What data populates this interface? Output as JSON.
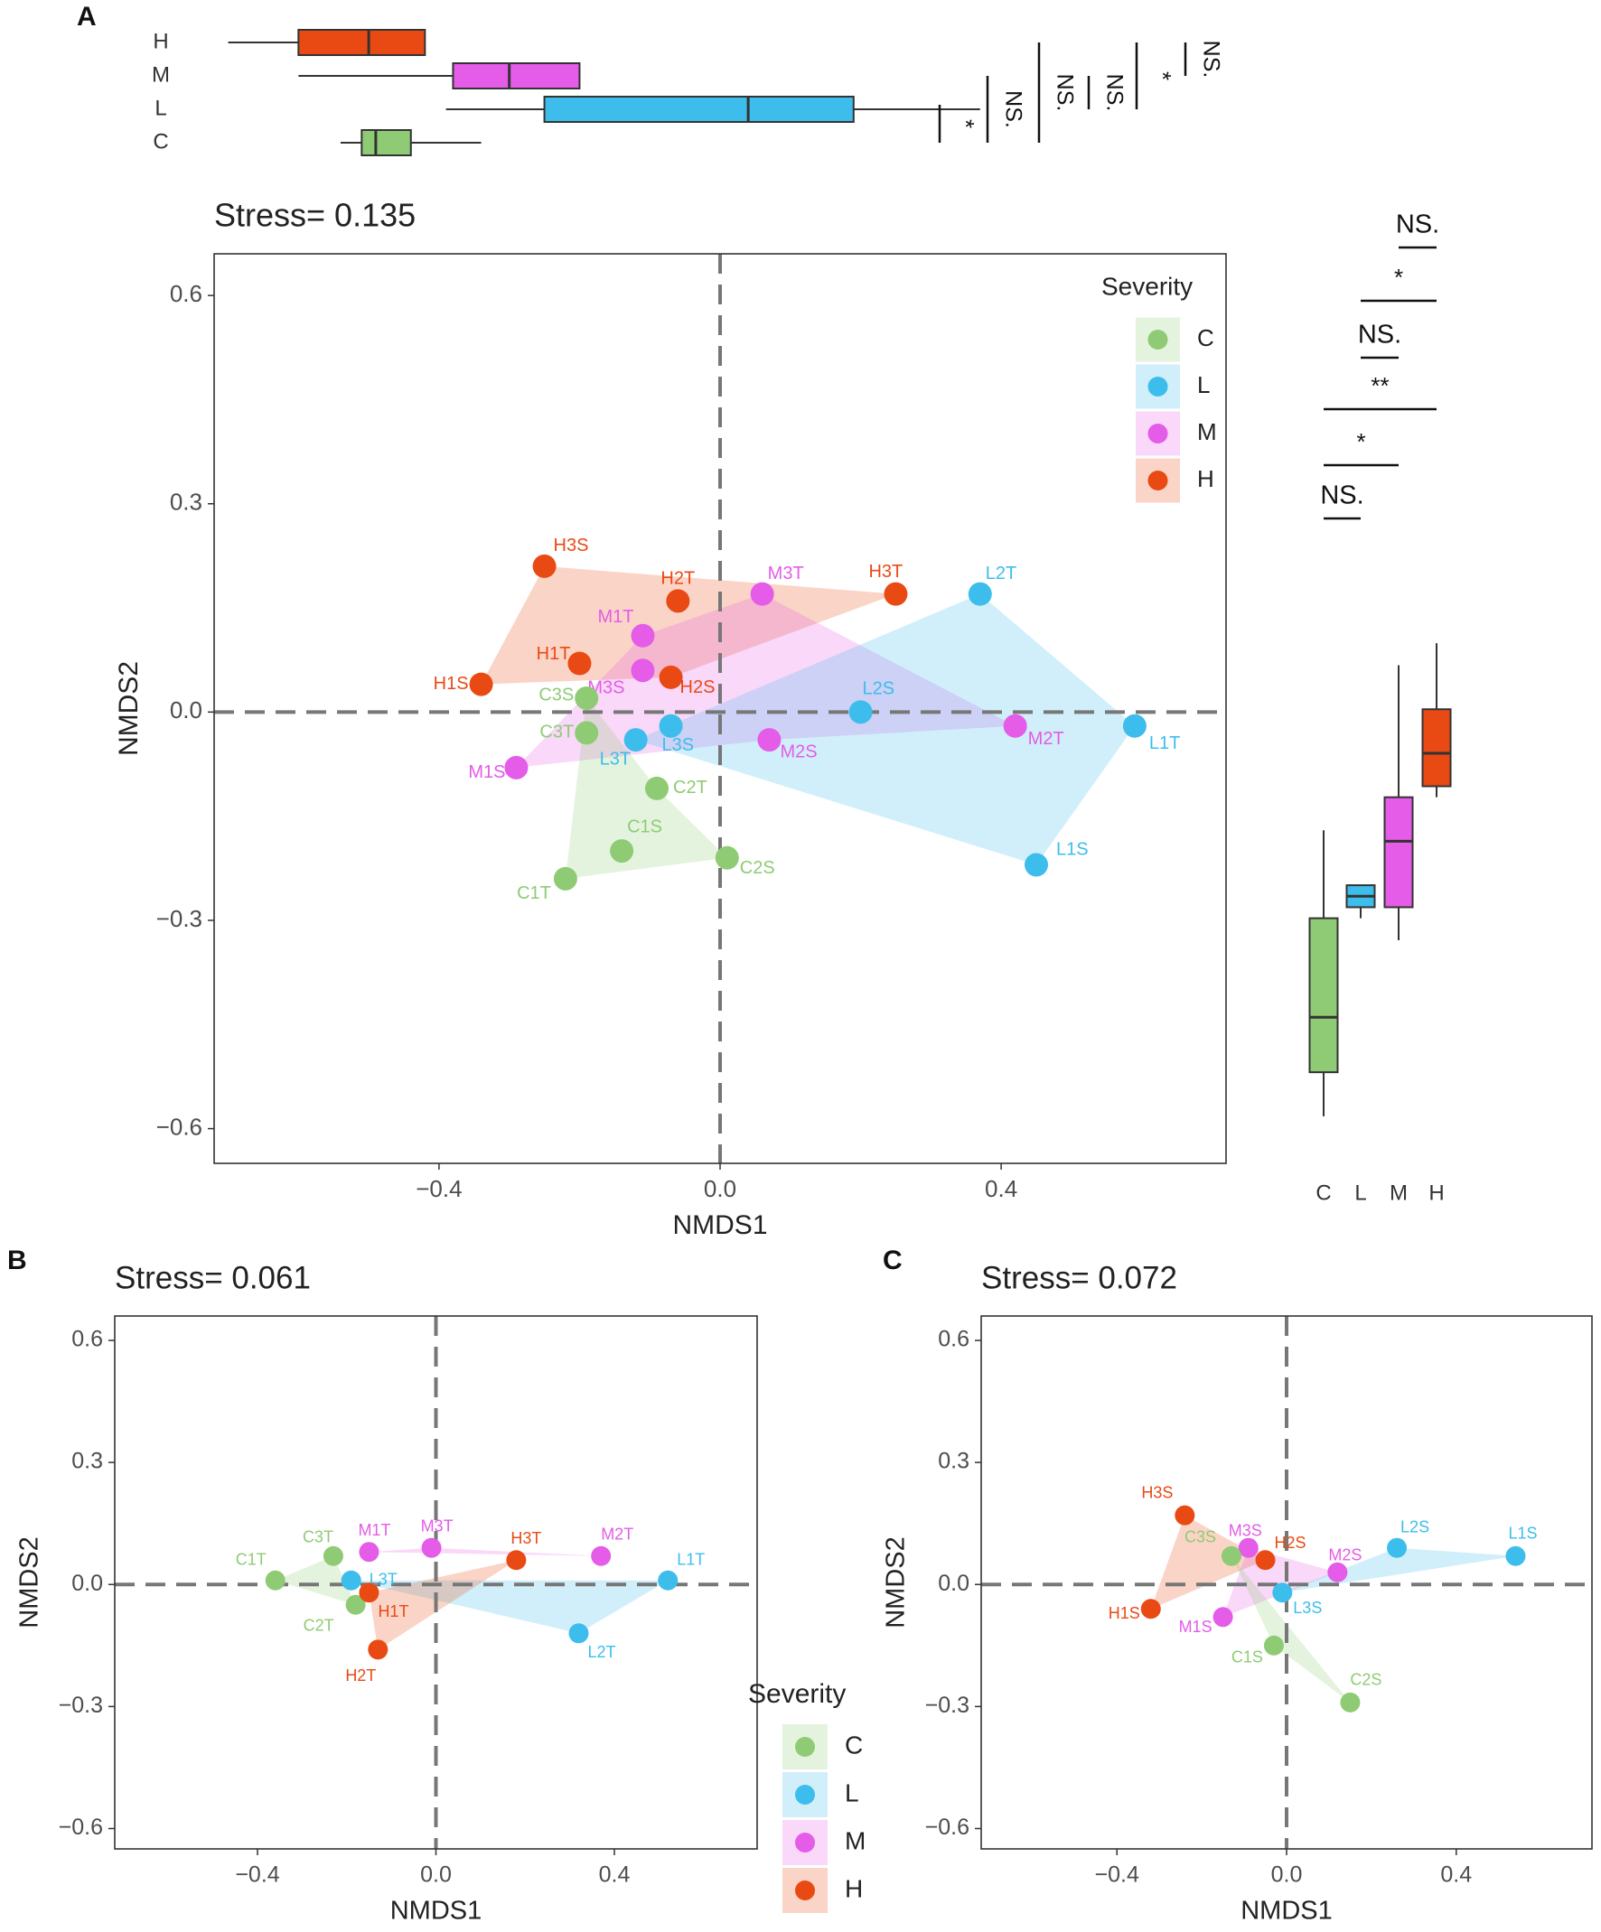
{
  "colors": {
    "C": "#8fcb74",
    "L": "#3dbdec",
    "M": "#e45ce8",
    "H": "#e94a14"
  },
  "panel_labels": {
    "a": "A",
    "b": "B",
    "c": "C"
  },
  "legend": {
    "title": "Severity",
    "items": [
      "C",
      "L",
      "M",
      "H"
    ]
  },
  "chart_data": [
    {
      "id": "panel_a",
      "type": "scatter",
      "title": "Stress= 0.135",
      "xlabel": "NMDS1",
      "ylabel": "NMDS2",
      "xlim": [
        -0.72,
        0.72
      ],
      "ylim": [
        -0.65,
        0.66
      ],
      "xticks": [
        -0.4,
        0.0,
        0.4
      ],
      "yticks": [
        0.6,
        0.3,
        0.0,
        -0.3,
        -0.6
      ],
      "xtick_labels": [
        "−0.4",
        "0.0",
        "0.4"
      ],
      "ytick_labels": [
        "0.6",
        "0.3",
        "0.0",
        "−0.3",
        "−0.6"
      ],
      "legend_position": "top-right",
      "points": [
        {
          "label": "H3S",
          "group": "H",
          "x": -0.25,
          "y": 0.21
        },
        {
          "label": "H2T",
          "group": "H",
          "x": -0.06,
          "y": 0.16
        },
        {
          "label": "H3T",
          "group": "H",
          "x": 0.25,
          "y": 0.17
        },
        {
          "label": "H1T",
          "group": "H",
          "x": -0.2,
          "y": 0.07
        },
        {
          "label": "H1S",
          "group": "H",
          "x": -0.34,
          "y": 0.04
        },
        {
          "label": "H2S",
          "group": "H",
          "x": -0.07,
          "y": 0.05
        },
        {
          "label": "M3T",
          "group": "M",
          "x": 0.06,
          "y": 0.17
        },
        {
          "label": "M1T",
          "group": "M",
          "x": -0.11,
          "y": 0.11
        },
        {
          "label": "M3S",
          "group": "M",
          "x": -0.11,
          "y": 0.06
        },
        {
          "label": "M2T",
          "group": "M",
          "x": 0.42,
          "y": -0.02
        },
        {
          "label": "M2S",
          "group": "M",
          "x": 0.07,
          "y": -0.04
        },
        {
          "label": "M1S",
          "group": "M",
          "x": -0.29,
          "y": -0.08
        },
        {
          "label": "L2T",
          "group": "L",
          "x": 0.37,
          "y": 0.17
        },
        {
          "label": "L2S",
          "group": "L",
          "x": 0.2,
          "y": 0.0
        },
        {
          "label": "L1T",
          "group": "L",
          "x": 0.59,
          "y": -0.02
        },
        {
          "label": "L3S",
          "group": "L",
          "x": -0.07,
          "y": -0.02
        },
        {
          "label": "L3T",
          "group": "L",
          "x": -0.12,
          "y": -0.04
        },
        {
          "label": "L1S",
          "group": "L",
          "x": 0.45,
          "y": -0.22
        },
        {
          "label": "C3S",
          "group": "C",
          "x": -0.19,
          "y": 0.02
        },
        {
          "label": "C3T",
          "group": "C",
          "x": -0.19,
          "y": -0.03
        },
        {
          "label": "C2T",
          "group": "C",
          "x": -0.09,
          "y": -0.11
        },
        {
          "label": "C1S",
          "group": "C",
          "x": -0.14,
          "y": -0.2
        },
        {
          "label": "C2S",
          "group": "C",
          "x": 0.01,
          "y": -0.21
        },
        {
          "label": "C1T",
          "group": "C",
          "x": -0.22,
          "y": -0.24
        }
      ],
      "hulls": [
        {
          "group": "H",
          "labels": [
            "H1S",
            "H3S",
            "H3T",
            "H2S"
          ]
        },
        {
          "group": "M",
          "labels": [
            "M1S",
            "M1T",
            "M3T",
            "M2T",
            "M2S"
          ]
        },
        {
          "group": "L",
          "labels": [
            "L3T",
            "L2T",
            "L1T",
            "L1S"
          ]
        },
        {
          "group": "C",
          "labels": [
            "C1T",
            "C3S",
            "C2T",
            "C2S"
          ]
        }
      ],
      "boxplot_top": {
        "axis": "NMDS1",
        "groups": [
          {
            "label": "H",
            "min": -0.7,
            "q1": -0.6,
            "median": -0.5,
            "q3": -0.42,
            "max": -0.42
          },
          {
            "label": "M",
            "min": -0.6,
            "q1": -0.38,
            "median": -0.3,
            "q3": -0.2,
            "max": -0.2
          },
          {
            "label": "L",
            "min": -0.39,
            "q1": -0.25,
            "median": 0.04,
            "q3": 0.19,
            "max": 0.37
          },
          {
            "label": "C",
            "min": -0.54,
            "q1": -0.51,
            "median": -0.49,
            "q3": -0.44,
            "max": -0.34
          }
        ],
        "significance": [
          "*",
          "NS.",
          "NS.",
          "NS.",
          "*",
          "NS."
        ]
      },
      "boxplot_right": {
        "axis": "NMDS2",
        "groups": [
          {
            "label": "C",
            "min": -0.31,
            "q1": -0.27,
            "median": -0.22,
            "q3": -0.13,
            "max": -0.05
          },
          {
            "label": "L",
            "min": -0.13,
            "q1": -0.12,
            "median": -0.11,
            "q3": -0.1,
            "max": -0.1
          },
          {
            "label": "M",
            "min": -0.15,
            "q1": -0.12,
            "median": -0.06,
            "q3": -0.02,
            "max": 0.1
          },
          {
            "label": "H",
            "min": -0.02,
            "q1": -0.01,
            "median": 0.02,
            "q3": 0.06,
            "max": 0.12
          }
        ],
        "significance": [
          "NS.",
          "*",
          "NS.",
          "**",
          "*",
          "NS."
        ]
      }
    },
    {
      "id": "panel_b",
      "type": "scatter",
      "title": "Stress= 0.061",
      "xlabel": "NMDS1",
      "ylabel": "NMDS2",
      "xlim": [
        -0.72,
        0.72
      ],
      "ylim": [
        -0.65,
        0.66
      ],
      "xticks": [
        -0.4,
        0.0,
        0.4
      ],
      "yticks": [
        0.6,
        0.3,
        0.0,
        -0.3,
        -0.6
      ],
      "xtick_labels": [
        "−0.4",
        "0.0",
        "0.4"
      ],
      "ytick_labels": [
        "0.6",
        "0.3",
        "0.0",
        "−0.3",
        "−0.6"
      ],
      "legend_position": "right",
      "points": [
        {
          "label": "C1T",
          "group": "C",
          "x": -0.36,
          "y": 0.01
        },
        {
          "label": "C3T",
          "group": "C",
          "x": -0.23,
          "y": 0.07
        },
        {
          "label": "C2T",
          "group": "C",
          "x": -0.18,
          "y": -0.05
        },
        {
          "label": "L3T",
          "group": "L",
          "x": -0.19,
          "y": 0.01
        },
        {
          "label": "L1T",
          "group": "L",
          "x": 0.52,
          "y": 0.01
        },
        {
          "label": "L2T",
          "group": "L",
          "x": 0.32,
          "y": -0.12
        },
        {
          "label": "M1T",
          "group": "M",
          "x": -0.15,
          "y": 0.08
        },
        {
          "label": "M3T",
          "group": "M",
          "x": -0.01,
          "y": 0.09
        },
        {
          "label": "M2T",
          "group": "M",
          "x": 0.37,
          "y": 0.07
        },
        {
          "label": "H3T",
          "group": "H",
          "x": 0.18,
          "y": 0.06
        },
        {
          "label": "H1T",
          "group": "H",
          "x": -0.15,
          "y": -0.02
        },
        {
          "label": "H2T",
          "group": "H",
          "x": -0.13,
          "y": -0.16
        }
      ],
      "hulls": [
        {
          "group": "C",
          "labels": [
            "C1T",
            "C3T",
            "C2T"
          ]
        },
        {
          "group": "L",
          "labels": [
            "L3T",
            "L1T",
            "L2T"
          ]
        },
        {
          "group": "M",
          "labels": [
            "M1T",
            "M3T",
            "M2T"
          ]
        },
        {
          "group": "H",
          "labels": [
            "H1T",
            "H3T",
            "H2T"
          ]
        }
      ]
    },
    {
      "id": "panel_c",
      "type": "scatter",
      "title": "Stress= 0.072",
      "xlabel": "NMDS1",
      "ylabel": "NMDS2",
      "xlim": [
        -0.72,
        0.72
      ],
      "ylim": [
        -0.65,
        0.66
      ],
      "xticks": [
        -0.4,
        0.0,
        0.4
      ],
      "yticks": [
        0.6,
        0.3,
        0.0,
        -0.3,
        -0.6
      ],
      "xtick_labels": [
        "−0.4",
        "0.0",
        "0.4"
      ],
      "ytick_labels": [
        "0.6",
        "0.3",
        "0.0",
        "−0.3",
        "−0.6"
      ],
      "points": [
        {
          "label": "H3S",
          "group": "H",
          "x": -0.24,
          "y": 0.17
        },
        {
          "label": "H2S",
          "group": "H",
          "x": -0.05,
          "y": 0.06
        },
        {
          "label": "H1S",
          "group": "H",
          "x": -0.32,
          "y": -0.06
        },
        {
          "label": "M3S",
          "group": "M",
          "x": -0.09,
          "y": 0.09
        },
        {
          "label": "M2S",
          "group": "M",
          "x": 0.12,
          "y": 0.03
        },
        {
          "label": "M1S",
          "group": "M",
          "x": -0.15,
          "y": -0.08
        },
        {
          "label": "C3S",
          "group": "C",
          "x": -0.13,
          "y": 0.07
        },
        {
          "label": "C1S",
          "group": "C",
          "x": -0.03,
          "y": -0.15
        },
        {
          "label": "C2S",
          "group": "C",
          "x": 0.15,
          "y": -0.29
        },
        {
          "label": "L2S",
          "group": "L",
          "x": 0.26,
          "y": 0.09
        },
        {
          "label": "L1S",
          "group": "L",
          "x": 0.54,
          "y": 0.07
        },
        {
          "label": "L3S",
          "group": "L",
          "x": -0.01,
          "y": -0.02
        }
      ],
      "hulls": [
        {
          "group": "H",
          "labels": [
            "H3S",
            "H2S",
            "H1S"
          ]
        },
        {
          "group": "M",
          "labels": [
            "M3S",
            "M2S",
            "M1S"
          ]
        },
        {
          "group": "C",
          "labels": [
            "C3S",
            "C1S",
            "C2S"
          ]
        },
        {
          "group": "L",
          "labels": [
            "L2S",
            "L1S",
            "L3S"
          ]
        }
      ]
    }
  ]
}
